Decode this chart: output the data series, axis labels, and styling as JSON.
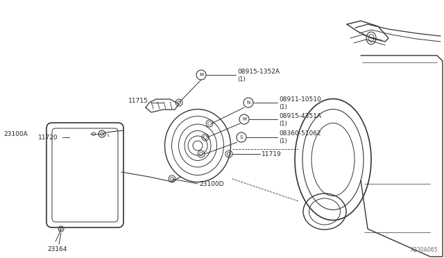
{
  "bg_color": "#ffffff",
  "line_color": "#333333",
  "text_color": "#222222",
  "diagram_code": "A230A065",
  "parts": [
    {
      "id": "23100A",
      "label": "23100A"
    },
    {
      "id": "11715",
      "label": "11715"
    },
    {
      "id": "08915-1352A",
      "label": "08915-1352A",
      "sub": "(1)"
    },
    {
      "id": "08911-10510",
      "label": "08911-10510",
      "sub": "(1)"
    },
    {
      "id": "08915-4351A",
      "label": "08915-4351A",
      "sub": "(1)"
    },
    {
      "id": "08360-51062",
      "label": "08360-51062",
      "sub": "(1)"
    },
    {
      "id": "11720",
      "label": "11720"
    },
    {
      "id": "23100D",
      "label": "23100D"
    },
    {
      "id": "11719",
      "label": "11719"
    },
    {
      "id": "23164",
      "label": "23164"
    }
  ]
}
